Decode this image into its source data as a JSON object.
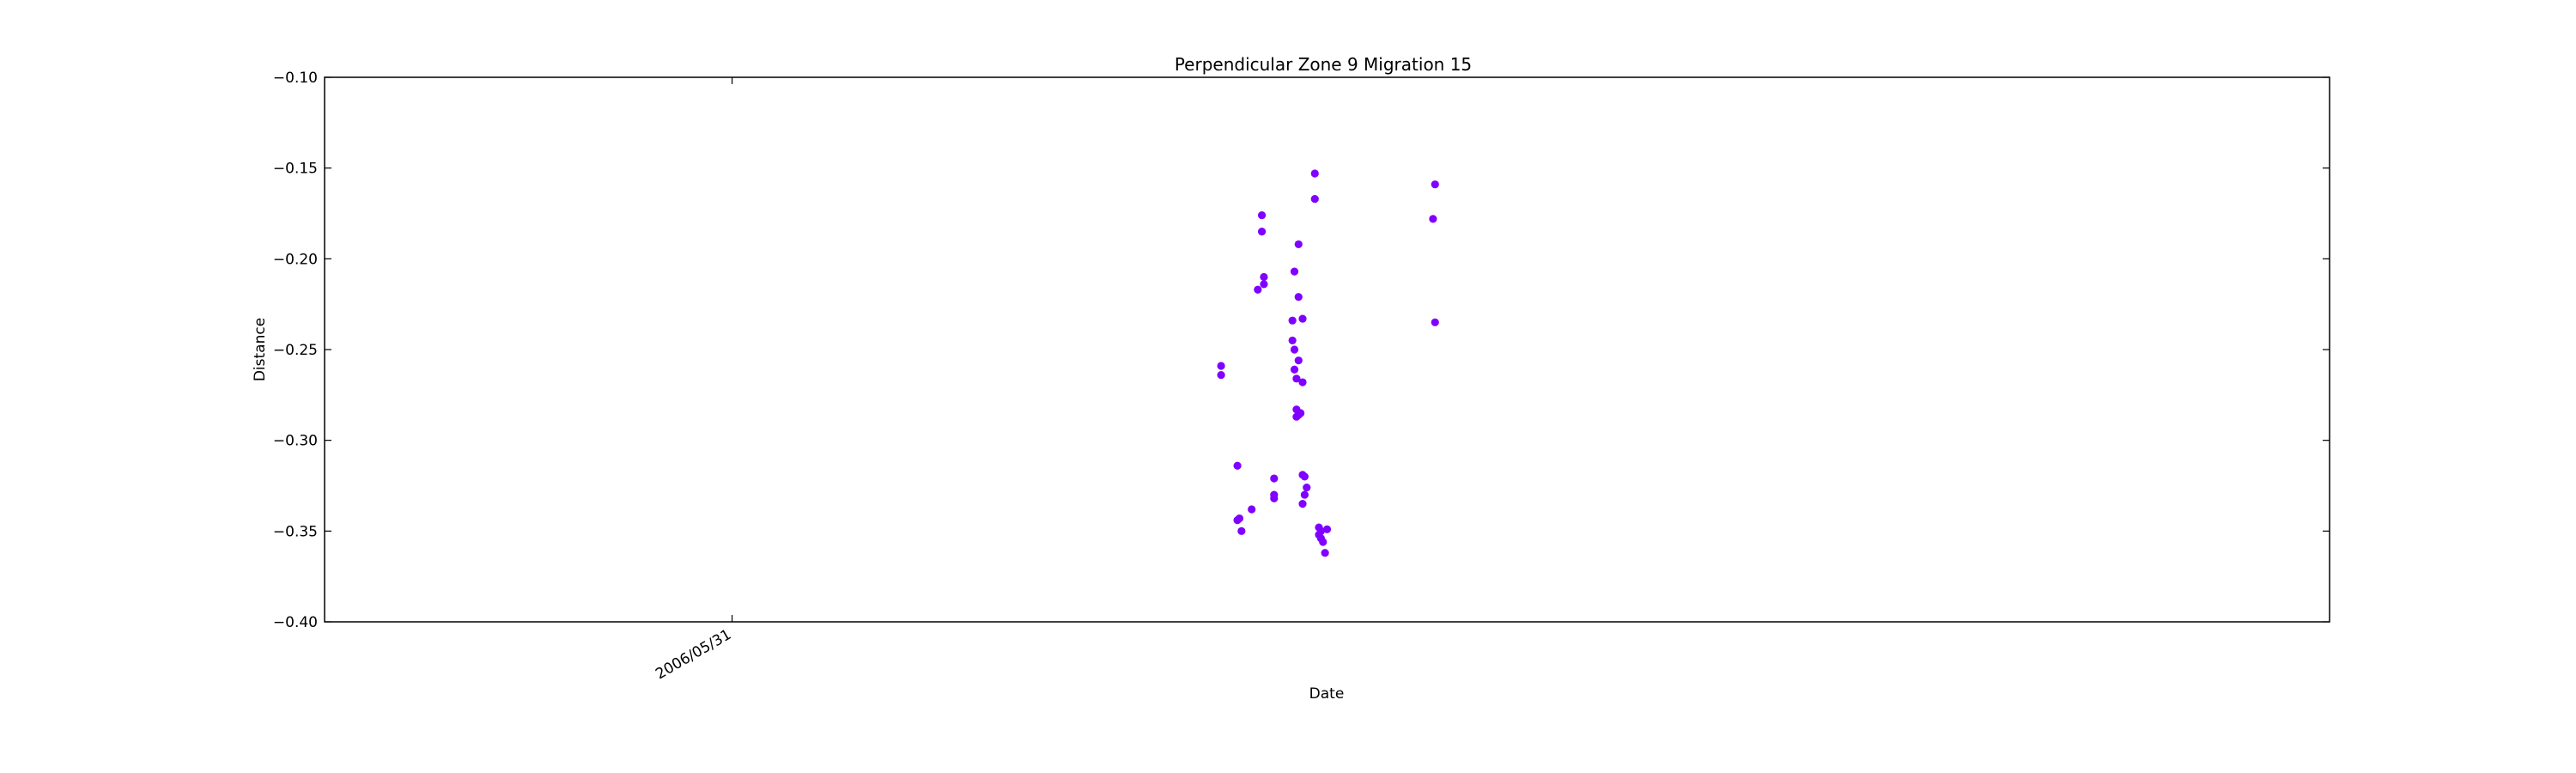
{
  "chart_data": {
    "type": "scatter",
    "title": "Perpendicular Zone 9 Migration 15",
    "xlabel": "Date",
    "ylabel": "Distance",
    "ylim": [
      -0.4,
      -0.1
    ],
    "yticks": [
      -0.1,
      -0.15,
      -0.2,
      -0.25,
      -0.3,
      -0.35,
      -0.4
    ],
    "ytick_labels": [
      "−0.10",
      "−0.15",
      "−0.20",
      "−0.25",
      "−0.30",
      "−0.35",
      "−0.40"
    ],
    "x_unit": "days relative to 2006/05/31",
    "xlim_days": [
      -1.0,
      3.92
    ],
    "xticks": [
      {
        "day": 0,
        "label": "2006/05/31"
      }
    ],
    "grid": false,
    "marker_color": "#8000ff",
    "points": [
      {
        "x": 1.2,
        "y": -0.259
      },
      {
        "x": 1.2,
        "y": -0.264
      },
      {
        "x": 1.24,
        "y": -0.314
      },
      {
        "x": 1.24,
        "y": -0.344
      },
      {
        "x": 1.245,
        "y": -0.343
      },
      {
        "x": 1.25,
        "y": -0.35
      },
      {
        "x": 1.275,
        "y": -0.338
      },
      {
        "x": 1.29,
        "y": -0.217
      },
      {
        "x": 1.3,
        "y": -0.176
      },
      {
        "x": 1.3,
        "y": -0.185
      },
      {
        "x": 1.305,
        "y": -0.21
      },
      {
        "x": 1.305,
        "y": -0.214
      },
      {
        "x": 1.33,
        "y": -0.321
      },
      {
        "x": 1.33,
        "y": -0.33
      },
      {
        "x": 1.33,
        "y": -0.332
      },
      {
        "x": 1.375,
        "y": -0.234
      },
      {
        "x": 1.375,
        "y": -0.245
      },
      {
        "x": 1.38,
        "y": -0.207
      },
      {
        "x": 1.38,
        "y": -0.25
      },
      {
        "x": 1.38,
        "y": -0.261
      },
      {
        "x": 1.385,
        "y": -0.266
      },
      {
        "x": 1.385,
        "y": -0.283
      },
      {
        "x": 1.385,
        "y": -0.287
      },
      {
        "x": 1.39,
        "y": -0.192
      },
      {
        "x": 1.39,
        "y": -0.221
      },
      {
        "x": 1.39,
        "y": -0.256
      },
      {
        "x": 1.39,
        "y": -0.286
      },
      {
        "x": 1.395,
        "y": -0.285
      },
      {
        "x": 1.4,
        "y": -0.233
      },
      {
        "x": 1.4,
        "y": -0.268
      },
      {
        "x": 1.4,
        "y": -0.335
      },
      {
        "x": 1.4,
        "y": -0.319
      },
      {
        "x": 1.405,
        "y": -0.32
      },
      {
        "x": 1.405,
        "y": -0.33
      },
      {
        "x": 1.41,
        "y": -0.326
      },
      {
        "x": 1.43,
        "y": -0.153
      },
      {
        "x": 1.43,
        "y": -0.167
      },
      {
        "x": 1.44,
        "y": -0.348
      },
      {
        "x": 1.44,
        "y": -0.352
      },
      {
        "x": 1.445,
        "y": -0.35
      },
      {
        "x": 1.445,
        "y": -0.354
      },
      {
        "x": 1.45,
        "y": -0.356
      },
      {
        "x": 1.455,
        "y": -0.362
      },
      {
        "x": 1.46,
        "y": -0.349
      },
      {
        "x": 1.72,
        "y": -0.178
      },
      {
        "x": 1.725,
        "y": -0.159
      },
      {
        "x": 1.725,
        "y": -0.235
      }
    ]
  }
}
